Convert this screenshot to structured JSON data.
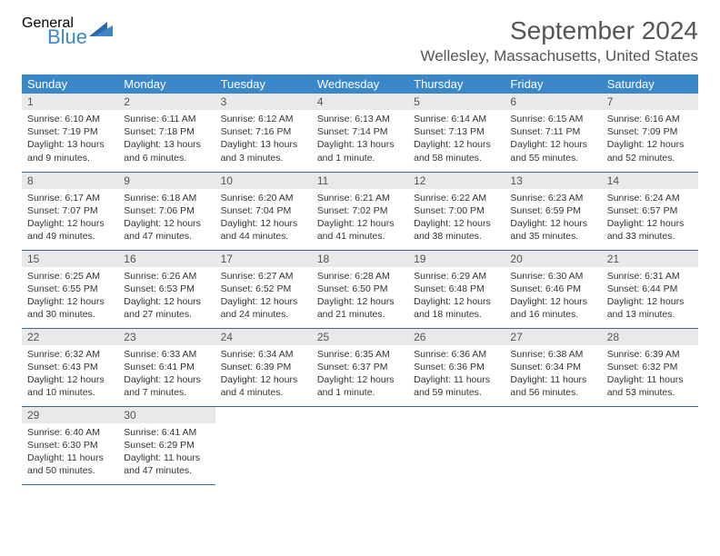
{
  "logo": {
    "general": "General",
    "blue": "Blue"
  },
  "title": "September 2024",
  "location": "Wellesley, Massachusetts, United States",
  "header_bg": "#3b87c8",
  "daybar_bg": "#e9e9e9",
  "border_color": "#3b6a9a",
  "weekdays": [
    "Sunday",
    "Monday",
    "Tuesday",
    "Wednesday",
    "Thursday",
    "Friday",
    "Saturday"
  ],
  "days": [
    {
      "n": "1",
      "sr": "6:10 AM",
      "ss": "7:19 PM",
      "dl": "13 hours and 9 minutes."
    },
    {
      "n": "2",
      "sr": "6:11 AM",
      "ss": "7:18 PM",
      "dl": "13 hours and 6 minutes."
    },
    {
      "n": "3",
      "sr": "6:12 AM",
      "ss": "7:16 PM",
      "dl": "13 hours and 3 minutes."
    },
    {
      "n": "4",
      "sr": "6:13 AM",
      "ss": "7:14 PM",
      "dl": "13 hours and 1 minute."
    },
    {
      "n": "5",
      "sr": "6:14 AM",
      "ss": "7:13 PM",
      "dl": "12 hours and 58 minutes."
    },
    {
      "n": "6",
      "sr": "6:15 AM",
      "ss": "7:11 PM",
      "dl": "12 hours and 55 minutes."
    },
    {
      "n": "7",
      "sr": "6:16 AM",
      "ss": "7:09 PM",
      "dl": "12 hours and 52 minutes."
    },
    {
      "n": "8",
      "sr": "6:17 AM",
      "ss": "7:07 PM",
      "dl": "12 hours and 49 minutes."
    },
    {
      "n": "9",
      "sr": "6:18 AM",
      "ss": "7:06 PM",
      "dl": "12 hours and 47 minutes."
    },
    {
      "n": "10",
      "sr": "6:20 AM",
      "ss": "7:04 PM",
      "dl": "12 hours and 44 minutes."
    },
    {
      "n": "11",
      "sr": "6:21 AM",
      "ss": "7:02 PM",
      "dl": "12 hours and 41 minutes."
    },
    {
      "n": "12",
      "sr": "6:22 AM",
      "ss": "7:00 PM",
      "dl": "12 hours and 38 minutes."
    },
    {
      "n": "13",
      "sr": "6:23 AM",
      "ss": "6:59 PM",
      "dl": "12 hours and 35 minutes."
    },
    {
      "n": "14",
      "sr": "6:24 AM",
      "ss": "6:57 PM",
      "dl": "12 hours and 33 minutes."
    },
    {
      "n": "15",
      "sr": "6:25 AM",
      "ss": "6:55 PM",
      "dl": "12 hours and 30 minutes."
    },
    {
      "n": "16",
      "sr": "6:26 AM",
      "ss": "6:53 PM",
      "dl": "12 hours and 27 minutes."
    },
    {
      "n": "17",
      "sr": "6:27 AM",
      "ss": "6:52 PM",
      "dl": "12 hours and 24 minutes."
    },
    {
      "n": "18",
      "sr": "6:28 AM",
      "ss": "6:50 PM",
      "dl": "12 hours and 21 minutes."
    },
    {
      "n": "19",
      "sr": "6:29 AM",
      "ss": "6:48 PM",
      "dl": "12 hours and 18 minutes."
    },
    {
      "n": "20",
      "sr": "6:30 AM",
      "ss": "6:46 PM",
      "dl": "12 hours and 16 minutes."
    },
    {
      "n": "21",
      "sr": "6:31 AM",
      "ss": "6:44 PM",
      "dl": "12 hours and 13 minutes."
    },
    {
      "n": "22",
      "sr": "6:32 AM",
      "ss": "6:43 PM",
      "dl": "12 hours and 10 minutes."
    },
    {
      "n": "23",
      "sr": "6:33 AM",
      "ss": "6:41 PM",
      "dl": "12 hours and 7 minutes."
    },
    {
      "n": "24",
      "sr": "6:34 AM",
      "ss": "6:39 PM",
      "dl": "12 hours and 4 minutes."
    },
    {
      "n": "25",
      "sr": "6:35 AM",
      "ss": "6:37 PM",
      "dl": "12 hours and 1 minute."
    },
    {
      "n": "26",
      "sr": "6:36 AM",
      "ss": "6:36 PM",
      "dl": "11 hours and 59 minutes."
    },
    {
      "n": "27",
      "sr": "6:38 AM",
      "ss": "6:34 PM",
      "dl": "11 hours and 56 minutes."
    },
    {
      "n": "28",
      "sr": "6:39 AM",
      "ss": "6:32 PM",
      "dl": "11 hours and 53 minutes."
    },
    {
      "n": "29",
      "sr": "6:40 AM",
      "ss": "6:30 PM",
      "dl": "11 hours and 50 minutes."
    },
    {
      "n": "30",
      "sr": "6:41 AM",
      "ss": "6:29 PM",
      "dl": "11 hours and 47 minutes."
    }
  ],
  "labels": {
    "sunrise": "Sunrise:",
    "sunset": "Sunset:",
    "daylight": "Daylight:"
  }
}
